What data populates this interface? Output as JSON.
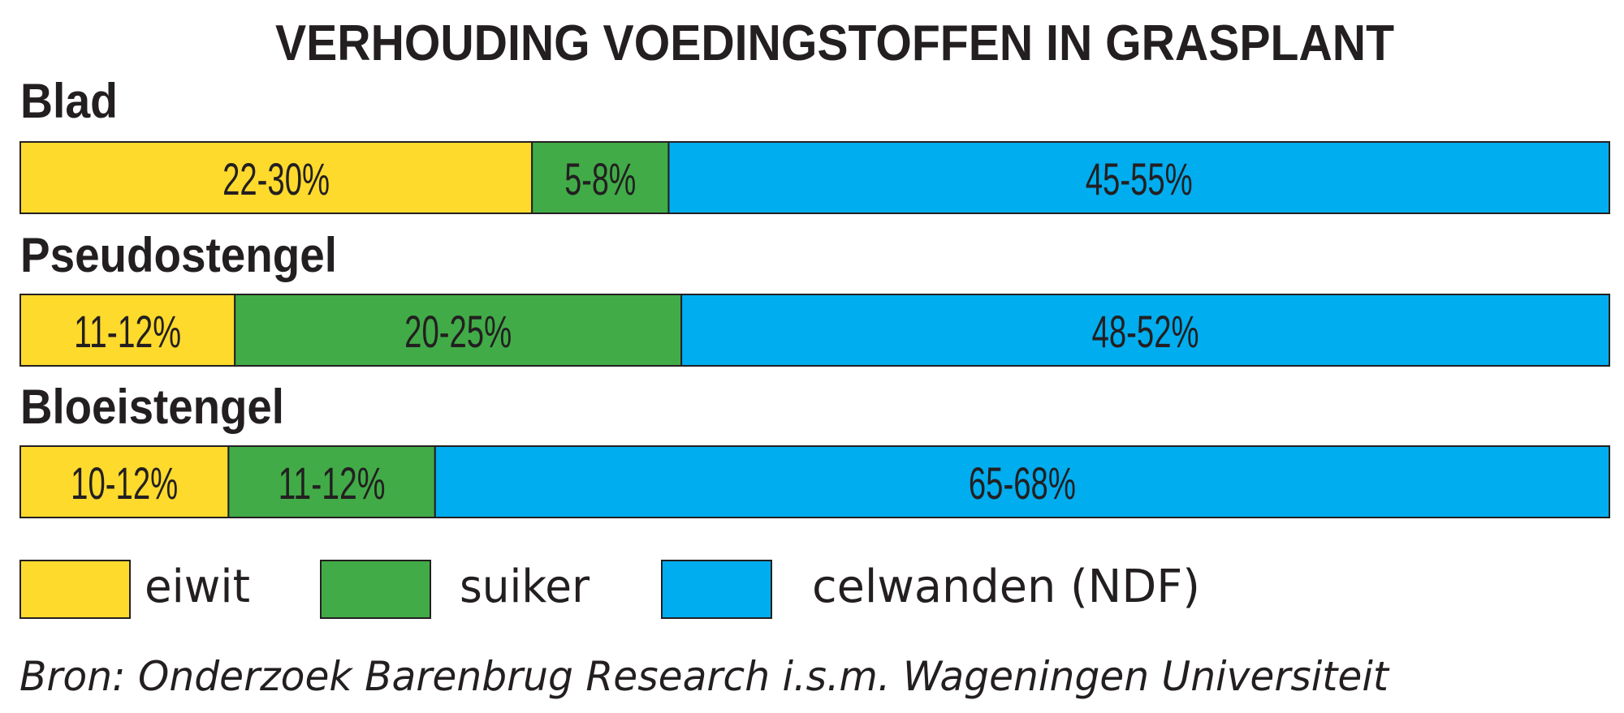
{
  "chart_data": {
    "type": "bar",
    "stacked": true,
    "orientation": "horizontal",
    "title": "VERHOUDING VOEDINGSTOFFEN IN GRASPLANT",
    "categories": [
      "Blad",
      "Pseudostengel",
      "Bloeistengel"
    ],
    "series": [
      {
        "name": "eiwit",
        "color": "#fdda2c",
        "labels": [
          "22-30%",
          "11-12%",
          "10-12%"
        ],
        "values": [
          26,
          11.5,
          11
        ],
        "display_share": [
          0.322,
          0.135,
          0.131
        ]
      },
      {
        "name": "suiker",
        "color": "#41ab48",
        "labels": [
          "5-8%",
          "20-25%",
          "11-12%"
        ],
        "values": [
          6.5,
          22.5,
          11.5
        ],
        "display_share": [
          0.086,
          0.281,
          0.13
        ]
      },
      {
        "name": "celwanden (NDF)",
        "color": "#00adef",
        "labels": [
          "45-55%",
          "48-52%",
          "65-68%"
        ],
        "values": [
          50,
          50,
          66.5
        ],
        "display_share": [
          0.592,
          0.584,
          0.739
        ]
      }
    ],
    "legend_position": "bottom",
    "grid": false
  },
  "source": "Bron: Onderzoek Barenbrug Research i.s.m. Wageningen Universiteit"
}
